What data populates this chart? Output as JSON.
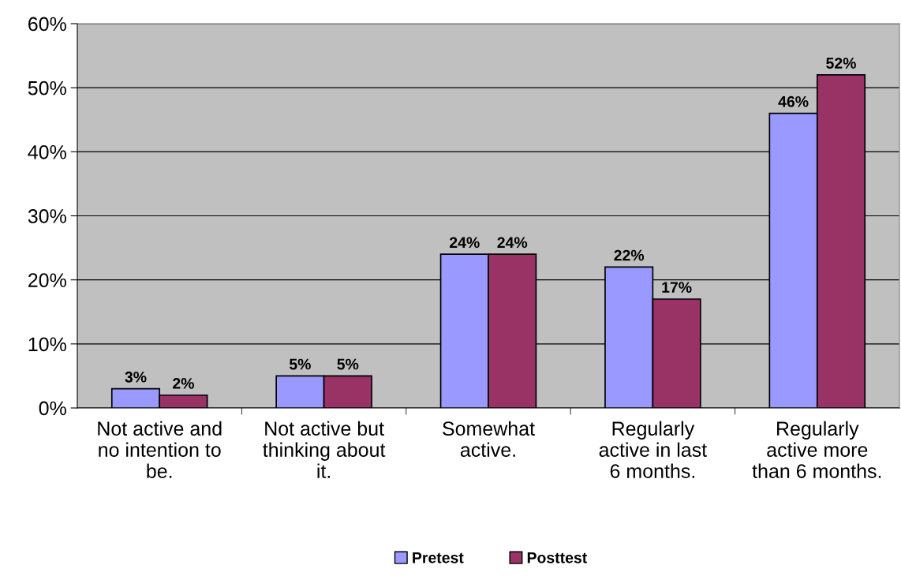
{
  "chart_data": {
    "type": "bar",
    "categories": [
      "Not active and no intention to be.",
      "Not active but thinking about it.",
      "Somewhat active.",
      "Regularly active in last 6 months.",
      "Regularly active more than 6 months."
    ],
    "series": [
      {
        "name": "Pretest",
        "color": "#9999ff",
        "values": [
          3,
          5,
          24,
          22,
          46
        ],
        "value_labels": [
          "3%",
          "5%",
          "24%",
          "22%",
          "46%"
        ]
      },
      {
        "name": "Posttest",
        "color": "#993366",
        "values": [
          2,
          5,
          24,
          17,
          52
        ],
        "value_labels": [
          "2%",
          "5%",
          "24%",
          "17%",
          "52%"
        ]
      }
    ],
    "ylim": [
      0,
      60
    ],
    "yticks": [
      {
        "value": 0,
        "label": "0%"
      },
      {
        "value": 10,
        "label": "10%"
      },
      {
        "value": 20,
        "label": "20%"
      },
      {
        "value": 30,
        "label": "30%"
      },
      {
        "value": 40,
        "label": "40%"
      },
      {
        "value": 50,
        "label": "50%"
      },
      {
        "value": 60,
        "label": "60%"
      }
    ],
    "grid": "y",
    "legend": "bottom"
  }
}
